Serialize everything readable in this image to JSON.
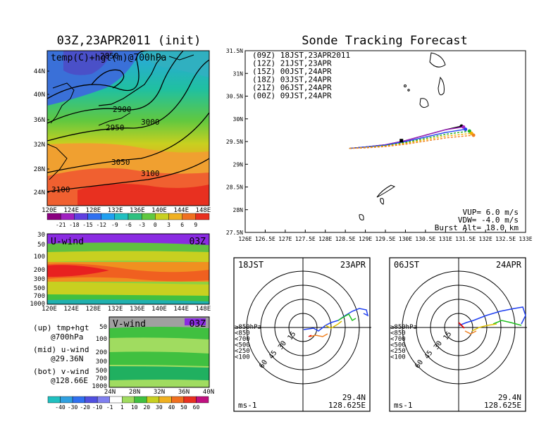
{
  "left": {
    "title": "03Z,23APR2011 (init)",
    "map_label": "temp(C)+hgt(m)@700hPa",
    "contour_labels": [
      "2850",
      "2900",
      "2950",
      "3000",
      "3050",
      "3100",
      "3100"
    ],
    "x_ticks": [
      "120E",
      "124E",
      "128E",
      "132E",
      "136E",
      "140E",
      "144E",
      "148E"
    ],
    "y_ticks": [
      "44N",
      "40N",
      "36N",
      "32N",
      "28N",
      "24N"
    ],
    "temp_cbar": [
      "-21",
      "-18",
      "-15",
      "-12",
      "-9",
      "-6",
      "-3",
      "0",
      "3",
      "6",
      "9"
    ],
    "u_title": "U-wind",
    "u_time": "03Z",
    "u_yticks": [
      "30",
      "50",
      "100",
      "200",
      "300",
      "500",
      "700",
      "1000"
    ],
    "v_title": "V-wind",
    "v_time": "03Z",
    "v_yticks": [
      "50",
      "100",
      "200",
      "300",
      "500",
      "700",
      "1000"
    ],
    "v_xticks": [
      "24N",
      "28N",
      "32N",
      "36N",
      "40N"
    ],
    "wind_cbar": [
      "-40",
      "-30",
      "-20",
      "-10",
      "-1",
      "1",
      "10",
      "20",
      "30",
      "40",
      "50",
      "60"
    ],
    "legend": [
      {
        "a": "(up) tmp+hgt",
        "b": "@700hPa"
      },
      {
        "a": "(mid) u-wind",
        "b": "@29.36N"
      },
      {
        "a": "(bot) v-wind",
        "b": "@128.66E"
      }
    ]
  },
  "right": {
    "title": "Sonde Tracking Forecast",
    "runs": [
      {
        "label": "(09Z)  18JST,23APR2011",
        "color": "#000000"
      },
      {
        "label": "(12Z)  21JST,23APR",
        "color": "#a020c0"
      },
      {
        "label": "(15Z)  00JST,24APR",
        "color": "#2040f0"
      },
      {
        "label": "(18Z)  03JST,24APR",
        "color": "#20b020"
      },
      {
        "label": "(21Z)  06JST,24APR",
        "color": "#f0b000"
      },
      {
        "label": "(00Z)  09JST,24APR",
        "color": "#f08020"
      }
    ],
    "x_ticks": [
      "126E",
      "126.5E",
      "127E",
      "127.5E",
      "128E",
      "128.5E",
      "129E",
      "129.5E",
      "130E",
      "130.5E",
      "131E",
      "131.5E",
      "132E",
      "132.5E",
      "133E"
    ],
    "y_ticks": [
      "31.5N",
      "31N",
      "30.5N",
      "30N",
      "29.5N",
      "29N",
      "28.5N",
      "28N",
      "27.5N"
    ],
    "info": [
      "VUP= 6.0 m/s",
      "VDW= -4.0 m/s",
      "Burst Alt= 18.0 km"
    ]
  },
  "hodo1": {
    "left": "18JST",
    "right": "23APR",
    "lat": "29.4N",
    "lon": "128.625E",
    "unit": "ms-1"
  },
  "hodo2": {
    "left": "06JST",
    "right": "24APR",
    "lat": "29.4N",
    "lon": "128.625E",
    "unit": "ms-1"
  },
  "hodo_legend": [
    {
      "t": "≥850hPa",
      "c": "#e00000"
    },
    {
      "t": "<850",
      "c": "#f08020"
    },
    {
      "t": "<700",
      "c": "#e0c000"
    },
    {
      "t": "<500",
      "c": "#20c020"
    },
    {
      "t": "<250",
      "c": "#10c0c0"
    },
    {
      "t": "<100",
      "c": "#2040f0"
    }
  ],
  "hodo_rings": [
    "15",
    "30",
    "45",
    "60"
  ],
  "chart_data": {
    "type": "line",
    "title": "Sonde Tracking Forecast",
    "xlim": [
      126,
      133
    ],
    "ylim": [
      27.5,
      31.5
    ],
    "series": [
      {
        "name": "(09Z) 18JST,23APR2011",
        "x": [
          128.6,
          129,
          129.5,
          130,
          130.5,
          131,
          131.4
        ],
        "y": [
          29.35,
          29.38,
          29.43,
          29.52,
          29.64,
          29.76,
          29.84
        ]
      },
      {
        "name": "(12Z) 21JST,23APR",
        "x": [
          128.6,
          129,
          129.5,
          130,
          130.5,
          131,
          131.45
        ],
        "y": [
          29.35,
          29.38,
          29.43,
          29.52,
          29.64,
          29.76,
          29.82
        ]
      },
      {
        "name": "(15Z) 00JST,24APR",
        "x": [
          128.6,
          129,
          129.5,
          130,
          130.5,
          131,
          131.5
        ],
        "y": [
          29.35,
          29.38,
          29.42,
          29.5,
          29.6,
          29.7,
          29.77
        ]
      },
      {
        "name": "(18Z) 03JST,24APR",
        "x": [
          128.6,
          129,
          129.5,
          130,
          130.5,
          131,
          131.6
        ],
        "y": [
          29.35,
          29.37,
          29.41,
          29.48,
          29.57,
          29.66,
          29.73
        ]
      },
      {
        "name": "(21Z) 06JST,24APR",
        "x": [
          128.6,
          129,
          129.5,
          130,
          130.5,
          131,
          131.65
        ],
        "y": [
          29.35,
          29.37,
          29.4,
          29.46,
          29.54,
          29.62,
          29.68
        ]
      },
      {
        "name": "(00Z) 09JST,24APR",
        "x": [
          128.6,
          129,
          129.5,
          130,
          130.5,
          131,
          131.7
        ],
        "y": [
          29.35,
          29.36,
          29.39,
          29.44,
          29.51,
          29.58,
          29.64
        ]
      }
    ]
  }
}
